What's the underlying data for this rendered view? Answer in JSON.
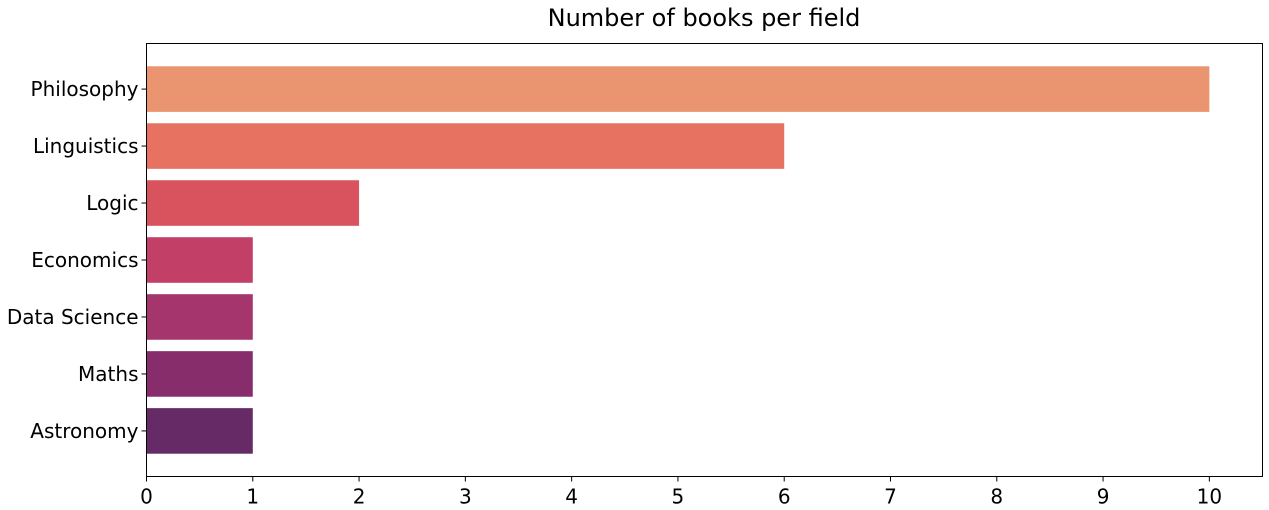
{
  "chart_data": {
    "type": "bar",
    "orientation": "horizontal",
    "title": "Number of books per field",
    "xlabel": "",
    "ylabel": "",
    "categories": [
      "Philosophy",
      "Linguistics",
      "Logic",
      "Economics",
      "Data Science",
      "Maths",
      "Astronomy"
    ],
    "values": [
      10,
      6,
      2,
      1,
      1,
      1,
      1
    ],
    "colors": [
      "#ea9470",
      "#e77262",
      "#d8535d",
      "#c23f68",
      "#a5356d",
      "#872d6c",
      "#662a67"
    ],
    "xlim": [
      0,
      10.5
    ],
    "xticks": [
      0,
      1,
      2,
      3,
      4,
      5,
      6,
      7,
      8,
      9,
      10
    ],
    "grid": false,
    "legend": "none"
  }
}
